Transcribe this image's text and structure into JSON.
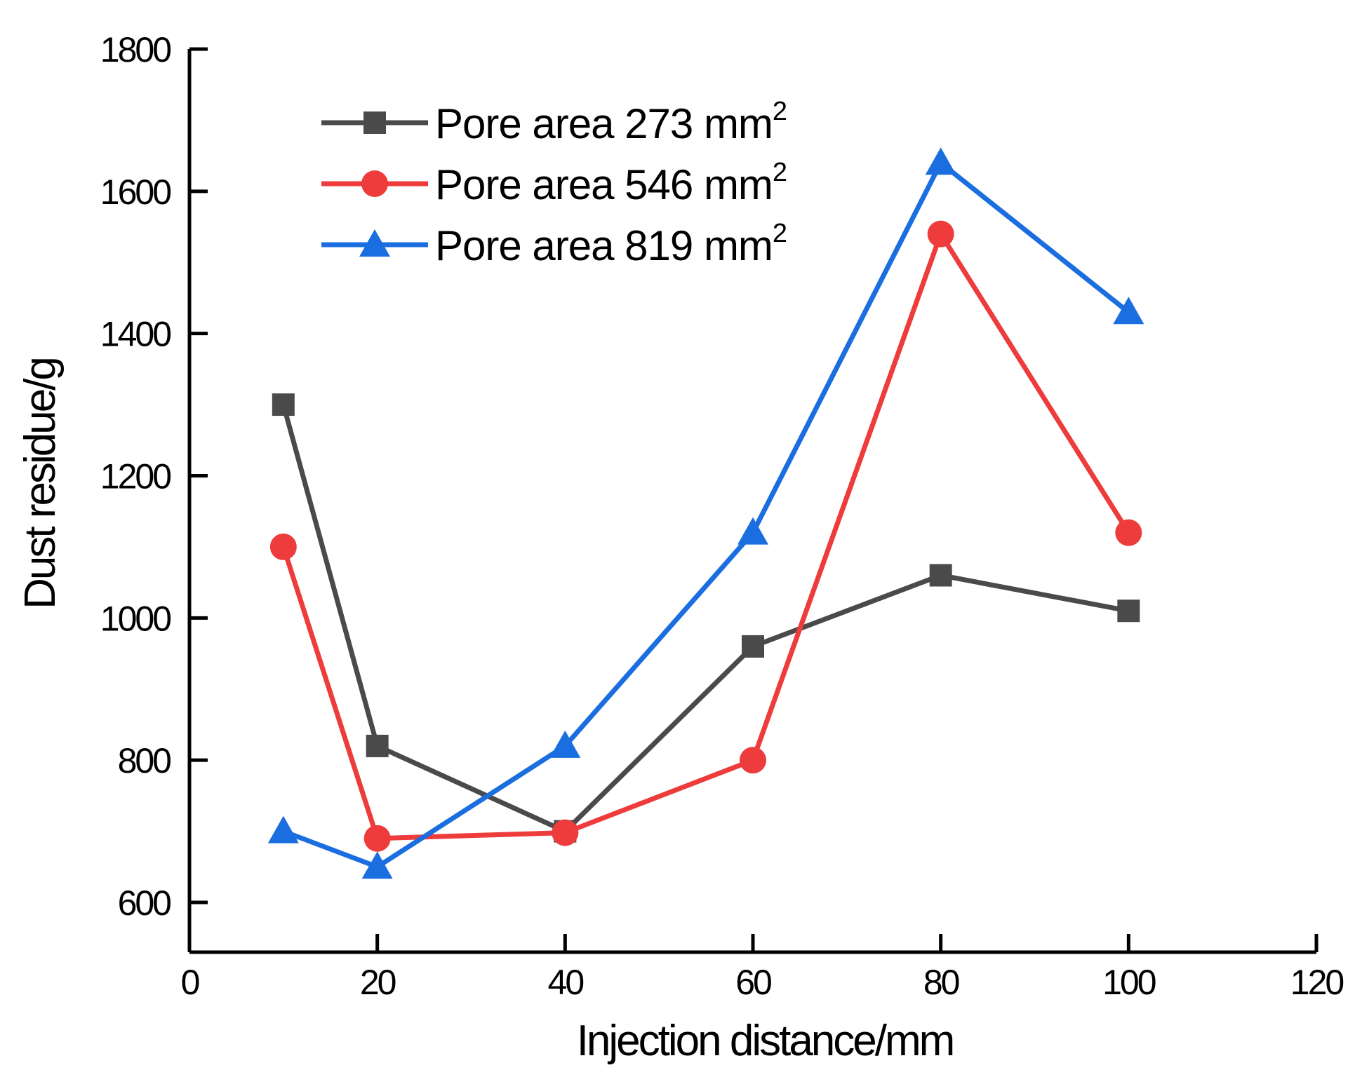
{
  "chart_data": {
    "type": "line",
    "title": "",
    "xlabel": "Injection distance/mm",
    "ylabel": "Dust residue/g",
    "xlim": [
      0,
      120
    ],
    "ylim": [
      530,
      1800
    ],
    "xticks": [
      0,
      20,
      40,
      60,
      80,
      100,
      120
    ],
    "yticks": [
      600,
      800,
      1000,
      1200,
      1400,
      1600,
      1800
    ],
    "grid": false,
    "legend_position": "top-left",
    "series": [
      {
        "name": "Pore area 273 mm",
        "name_sup": "2",
        "marker": "square",
        "color": "#4a4a4a",
        "x": [
          10,
          20,
          40,
          60,
          80,
          100
        ],
        "y": [
          1300,
          820,
          700,
          960,
          1060,
          1010
        ]
      },
      {
        "name": "Pore area 546 mm",
        "name_sup": "2",
        "marker": "circle",
        "color": "#ee3b3b",
        "x": [
          10,
          20,
          40,
          60,
          80,
          100
        ],
        "y": [
          1100,
          690,
          698,
          800,
          1540,
          1120
        ]
      },
      {
        "name": "Pore area 819 mm",
        "name_sup": "2",
        "marker": "triangle",
        "color": "#1a6ee0",
        "x": [
          10,
          20,
          40,
          60,
          80,
          100
        ],
        "y": [
          700,
          650,
          820,
          1120,
          1640,
          1430
        ]
      }
    ]
  }
}
